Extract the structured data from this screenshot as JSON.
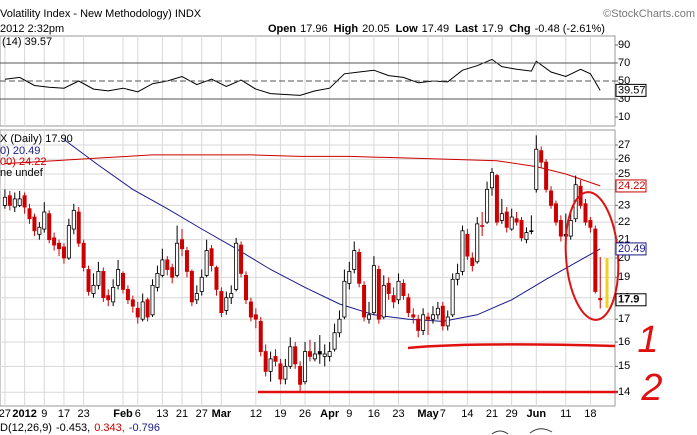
{
  "chart_data": {
    "type": "candlestick",
    "title": "Volatility Index - New Methodology) INDX",
    "source": "©StockCharts.com",
    "date_label": "2012 2:32pm",
    "stats": [
      {
        "label": "Open",
        "value": 17.96
      },
      {
        "label": "High",
        "value": 20.05
      },
      {
        "label": "Low",
        "value": 17.49
      },
      {
        "label": "Last",
        "value": 17.9
      },
      {
        "label": "Chg",
        "value": "-0.48 (-2.61%)"
      }
    ],
    "price_label": "X (Daily) 17.90",
    "last_price": 17.9,
    "ylim": [
      13.5,
      28.1
    ],
    "log_scale": true,
    "yticks": [
      14,
      15,
      16,
      17,
      18,
      19,
      20,
      21,
      22,
      23,
      24,
      25,
      26,
      27
    ],
    "xlim": [
      -1,
      124
    ],
    "xticks": [
      {
        "value": 0,
        "label": "27"
      },
      {
        "value": 4,
        "label": "2012",
        "bold": true
      },
      {
        "value": 8,
        "label": "9"
      },
      {
        "value": 12,
        "label": "17"
      },
      {
        "value": 16,
        "label": "23"
      },
      {
        "value": 24,
        "label": "Feb",
        "bold": true
      },
      {
        "value": 27,
        "label": "6"
      },
      {
        "value": 32,
        "label": "13"
      },
      {
        "value": 36,
        "label": "21"
      },
      {
        "value": 40,
        "label": "27"
      },
      {
        "value": 44,
        "label": "Mar",
        "bold": true
      },
      {
        "value": 51,
        "label": "12"
      },
      {
        "value": 56,
        "label": "19"
      },
      {
        "value": 61,
        "label": "26"
      },
      {
        "value": 66,
        "label": "Apr",
        "bold": true
      },
      {
        "value": 70,
        "label": "9"
      },
      {
        "value": 75,
        "label": "16"
      },
      {
        "value": 80,
        "label": "23"
      },
      {
        "value": 86,
        "label": "May",
        "bold": true
      },
      {
        "value": 89,
        "label": "7"
      },
      {
        "value": 94,
        "label": "14"
      },
      {
        "value": 99,
        "label": "21"
      },
      {
        "value": 103,
        "label": "29"
      },
      {
        "value": 108,
        "label": "Jun",
        "bold": true
      },
      {
        "value": 114,
        "label": "11"
      },
      {
        "value": 119,
        "label": "18"
      }
    ],
    "grid": true,
    "ohlc": [
      [
        23.0,
        24.0,
        22.8,
        23.5
      ],
      [
        23.6,
        23.9,
        22.7,
        23.0
      ],
      [
        22.9,
        23.8,
        22.6,
        23.4
      ],
      [
        23.0,
        23.9,
        22.9,
        23.4
      ],
      [
        23.6,
        23.8,
        22.5,
        22.9
      ],
      [
        22.8,
        23.1,
        21.9,
        22.2
      ],
      [
        22.3,
        22.5,
        21.2,
        21.5
      ],
      [
        21.3,
        22.0,
        21.0,
        21.7
      ],
      [
        21.6,
        23.2,
        21.4,
        22.6
      ],
      [
        22.5,
        22.7,
        20.8,
        21.0
      ],
      [
        21.1,
        21.4,
        20.4,
        20.7
      ],
      [
        20.8,
        21.0,
        20.1,
        20.5
      ],
      [
        20.6,
        20.8,
        19.7,
        20.0
      ],
      [
        20.0,
        22.2,
        19.9,
        21.8
      ],
      [
        21.6,
        23.1,
        21.3,
        22.7
      ],
      [
        22.6,
        22.9,
        20.6,
        20.8
      ],
      [
        20.8,
        21.0,
        19.3,
        19.5
      ],
      [
        19.4,
        19.6,
        18.1,
        18.3
      ],
      [
        18.2,
        19.2,
        18.0,
        18.6
      ],
      [
        18.6,
        19.8,
        18.4,
        19.3
      ],
      [
        19.3,
        19.5,
        17.8,
        18.0
      ],
      [
        18.1,
        18.4,
        17.6,
        17.9
      ],
      [
        17.8,
        18.9,
        17.6,
        18.5
      ],
      [
        18.6,
        19.9,
        18.4,
        19.4
      ],
      [
        19.2,
        19.3,
        18.2,
        18.4
      ],
      [
        18.4,
        18.6,
        17.7,
        17.9
      ],
      [
        17.9,
        18.1,
        17.3,
        17.6
      ],
      [
        17.5,
        17.8,
        16.8,
        17.1
      ],
      [
        17.0,
        18.2,
        16.9,
        17.8
      ],
      [
        17.9,
        18.0,
        16.9,
        17.1
      ],
      [
        17.2,
        18.9,
        17.1,
        18.6
      ],
      [
        18.5,
        19.6,
        18.3,
        19.2
      ],
      [
        19.1,
        20.5,
        19.0,
        19.9
      ],
      [
        19.9,
        20.1,
        19.1,
        19.4
      ],
      [
        19.5,
        19.7,
        18.7,
        19.0
      ],
      [
        19.1,
        21.8,
        19.0,
        20.8
      ],
      [
        21.0,
        21.6,
        20.1,
        20.5
      ],
      [
        20.4,
        20.6,
        19.0,
        19.3
      ],
      [
        19.3,
        19.4,
        17.6,
        17.8
      ],
      [
        17.9,
        18.6,
        17.7,
        18.2
      ],
      [
        18.3,
        19.4,
        18.1,
        19.0
      ],
      [
        19.1,
        21.0,
        19.0,
        20.4
      ],
      [
        20.5,
        20.7,
        19.3,
        19.6
      ],
      [
        19.5,
        19.6,
        18.1,
        18.4
      ],
      [
        18.3,
        18.5,
        17.1,
        17.3
      ],
      [
        17.4,
        18.3,
        17.2,
        18.0
      ],
      [
        18.0,
        18.6,
        17.7,
        18.2
      ],
      [
        18.4,
        21.1,
        18.3,
        20.8
      ],
      [
        20.7,
        20.9,
        19.0,
        19.2
      ],
      [
        19.1,
        19.3,
        17.7,
        17.9
      ],
      [
        17.8,
        18.0,
        16.9,
        17.1
      ],
      [
        17.2,
        17.5,
        16.6,
        17.0
      ],
      [
        16.9,
        17.1,
        15.4,
        15.6
      ],
      [
        15.6,
        15.9,
        14.6,
        14.8
      ],
      [
        14.8,
        15.6,
        14.4,
        15.3
      ],
      [
        15.4,
        15.7,
        15.0,
        15.2
      ],
      [
        15.1,
        15.3,
        14.3,
        14.5
      ],
      [
        14.5,
        15.3,
        14.3,
        15.0
      ],
      [
        15.0,
        16.2,
        14.9,
        15.8
      ],
      [
        15.8,
        16.0,
        14.9,
        15.1
      ],
      [
        15.0,
        15.2,
        14.0,
        14.3
      ],
      [
        14.4,
        16.0,
        14.3,
        15.6
      ],
      [
        15.6,
        16.1,
        15.2,
        15.4
      ],
      [
        15.3,
        16.0,
        15.2,
        15.5
      ],
      [
        15.6,
        16.3,
        15.1,
        15.5
      ],
      [
        15.4,
        15.9,
        15.0,
        15.5
      ],
      [
        15.4,
        16.0,
        15.2,
        15.6
      ],
      [
        15.7,
        16.8,
        15.6,
        16.4
      ],
      [
        16.4,
        17.4,
        16.2,
        17.0
      ],
      [
        17.1,
        19.4,
        17.0,
        18.8
      ],
      [
        18.7,
        19.8,
        18.4,
        19.3
      ],
      [
        19.4,
        20.9,
        19.2,
        20.4
      ],
      [
        20.3,
        20.5,
        18.5,
        18.7
      ],
      [
        18.6,
        18.8,
        16.9,
        17.1
      ],
      [
        17.0,
        17.8,
        16.8,
        17.2
      ],
      [
        17.3,
        20.1,
        17.2,
        19.6
      ],
      [
        19.4,
        19.6,
        16.8,
        17.0
      ],
      [
        17.1,
        19.1,
        17.0,
        18.6
      ],
      [
        18.7,
        19.0,
        17.9,
        18.2
      ],
      [
        18.1,
        18.5,
        17.5,
        17.8
      ],
      [
        17.9,
        19.2,
        17.7,
        18.8
      ],
      [
        18.7,
        18.9,
        17.9,
        18.1
      ],
      [
        18.0,
        18.2,
        17.1,
        17.3
      ],
      [
        17.2,
        17.5,
        16.8,
        17.1
      ],
      [
        17.0,
        17.2,
        16.2,
        16.5
      ],
      [
        16.5,
        17.5,
        16.3,
        17.2
      ],
      [
        17.1,
        17.3,
        16.3,
        17.0
      ],
      [
        17.0,
        17.6,
        16.8,
        17.2
      ],
      [
        17.2,
        17.8,
        17.0,
        17.5
      ],
      [
        17.6,
        17.8,
        16.5,
        16.7
      ],
      [
        16.7,
        17.4,
        16.5,
        17.1
      ],
      [
        17.2,
        19.2,
        17.1,
        18.9
      ],
      [
        18.9,
        19.7,
        18.6,
        19.2
      ],
      [
        19.3,
        21.8,
        19.1,
        21.5
      ],
      [
        21.3,
        21.6,
        19.9,
        20.1
      ],
      [
        20.0,
        20.3,
        19.3,
        19.6
      ],
      [
        19.8,
        22.3,
        19.7,
        21.9
      ],
      [
        21.8,
        22.6,
        21.2,
        21.8
      ],
      [
        22.0,
        24.5,
        21.9,
        24.0
      ],
      [
        24.1,
        25.4,
        23.6,
        25.1
      ],
      [
        24.9,
        25.0,
        21.8,
        22.0
      ],
      [
        22.1,
        23.4,
        21.9,
        22.5
      ],
      [
        22.6,
        22.9,
        21.4,
        21.7
      ],
      [
        21.6,
        22.8,
        21.5,
        22.3
      ],
      [
        22.2,
        22.6,
        21.8,
        22.0
      ],
      [
        22.1,
        22.3,
        20.9,
        21.1
      ],
      [
        21.0,
        21.7,
        20.8,
        21.4
      ],
      [
        21.5,
        22.4,
        21.3,
        21.5
      ],
      [
        24.0,
        27.7,
        23.8,
        26.7
      ],
      [
        26.6,
        26.9,
        25.4,
        25.8
      ],
      [
        25.8,
        26.0,
        23.8,
        24.0
      ],
      [
        23.9,
        24.2,
        22.8,
        23.0
      ],
      [
        23.1,
        23.3,
        21.8,
        22.0
      ],
      [
        22.1,
        22.4,
        20.9,
        21.2
      ],
      [
        21.3,
        22.5,
        20.6,
        21.2
      ],
      [
        21.2,
        22.6,
        21.0,
        22.1
      ],
      [
        22.2,
        24.9,
        22.0,
        24.3
      ],
      [
        24.2,
        24.6,
        22.8,
        23.0
      ],
      [
        23.1,
        23.4,
        21.8,
        22.0
      ],
      [
        22.1,
        22.3,
        21.4,
        21.7
      ],
      [
        21.6,
        21.8,
        18.2,
        18.3
      ],
      [
        17.96,
        20.05,
        17.49,
        17.9
      ]
    ],
    "series": [
      {
        "name": "0) 20.49",
        "color": "#1a1a8c",
        "last_value": 20.49,
        "x": [
          12,
          19,
          26,
          33,
          40,
          47,
          54,
          61,
          68,
          75,
          82,
          89,
          96,
          103,
          110,
          117,
          121
        ],
        "values": [
          27.4,
          25.6,
          24.0,
          22.8,
          21.6,
          20.5,
          19.4,
          18.5,
          17.7,
          17.2,
          17.0,
          16.9,
          17.2,
          17.9,
          18.9,
          19.9,
          20.49
        ]
      },
      {
        "name": "00) 24.22",
        "color": "#cc0000",
        "last_value": 24.22,
        "x": [
          0,
          10,
          20,
          30,
          40,
          50,
          60,
          70,
          80,
          90,
          100,
          108,
          114,
          121
        ],
        "values": [
          25.7,
          25.9,
          26.1,
          26.3,
          26.3,
          26.3,
          26.2,
          26.2,
          26.1,
          26.0,
          25.9,
          25.5,
          25.0,
          24.22
        ]
      }
    ],
    "legend_extra": "ne undef",
    "rsi": {
      "label": "(14) 39.57",
      "last_value": 39.57,
      "color": "#000000",
      "ylim": [
        0,
        100
      ],
      "yticks": [
        10,
        30,
        50,
        70,
        90
      ],
      "lines": [
        30,
        50,
        70
      ],
      "x": [
        0,
        3,
        6,
        9,
        12,
        15,
        18,
        21,
        24,
        27,
        30,
        33,
        36,
        39,
        42,
        45,
        48,
        51,
        54,
        57,
        60,
        63,
        66,
        69,
        72,
        75,
        78,
        81,
        84,
        87,
        90,
        93,
        96,
        99,
        101,
        104,
        107,
        108,
        111,
        114,
        117,
        119,
        121
      ],
      "values": [
        52,
        54,
        45,
        43,
        42,
        50,
        41,
        39,
        42,
        38,
        47,
        50,
        55,
        46,
        52,
        44,
        51,
        41,
        36,
        35,
        34,
        39,
        42,
        58,
        60,
        62,
        56,
        54,
        48,
        50,
        49,
        62,
        67,
        74,
        66,
        63,
        61,
        72,
        60,
        55,
        63,
        58,
        39.57
      ]
    },
    "macd": {
      "label": "D(12,26,9)",
      "values": [
        "-0.453,",
        "0.343,",
        "-0.796"
      ],
      "colors": [
        "#000000",
        "#cc0000",
        "#1a1a8c"
      ]
    },
    "annotations": [
      "1",
      "2"
    ]
  }
}
